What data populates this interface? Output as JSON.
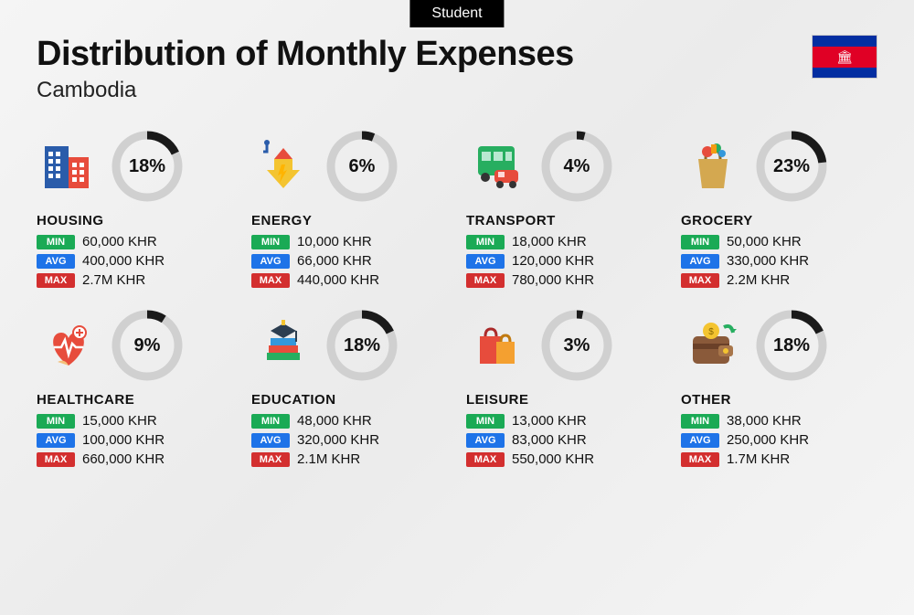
{
  "badge": "Student",
  "title": "Distribution of Monthly Expenses",
  "country": "Cambodia",
  "flag": {
    "stripe_colors": [
      "#032ea1",
      "#e00025",
      "#032ea1"
    ],
    "temple_color": "#ffffff"
  },
  "ring_style": {
    "radius": 34,
    "stroke_width": 9,
    "bg_color": "#d0d0d0",
    "fg_color": "#1a1a1a"
  },
  "tag_labels": {
    "min": "MIN",
    "avg": "AVG",
    "max": "MAX"
  },
  "tag_colors": {
    "min": "#1aaa55",
    "avg": "#1e73e8",
    "max": "#d32f2f"
  },
  "categories": [
    {
      "key": "housing",
      "name": "HOUSING",
      "percent": 18,
      "percent_label": "18%",
      "min": "60,000 KHR",
      "avg": "400,000 KHR",
      "max": "2.7M KHR",
      "icon": "buildings"
    },
    {
      "key": "energy",
      "name": "ENERGY",
      "percent": 6,
      "percent_label": "6%",
      "min": "10,000 KHR",
      "avg": "66,000 KHR",
      "max": "440,000 KHR",
      "icon": "energy"
    },
    {
      "key": "transport",
      "name": "TRANSPORT",
      "percent": 4,
      "percent_label": "4%",
      "min": "18,000 KHR",
      "avg": "120,000 KHR",
      "max": "780,000 KHR",
      "icon": "bus"
    },
    {
      "key": "grocery",
      "name": "GROCERY",
      "percent": 23,
      "percent_label": "23%",
      "min": "50,000 KHR",
      "avg": "330,000 KHR",
      "max": "2.2M KHR",
      "icon": "bag"
    },
    {
      "key": "healthcare",
      "name": "HEALTHCARE",
      "percent": 9,
      "percent_label": "9%",
      "min": "15,000 KHR",
      "avg": "100,000 KHR",
      "max": "660,000 KHR",
      "icon": "heart"
    },
    {
      "key": "education",
      "name": "EDUCATION",
      "percent": 18,
      "percent_label": "18%",
      "min": "48,000 KHR",
      "avg": "320,000 KHR",
      "max": "2.1M KHR",
      "icon": "books"
    },
    {
      "key": "leisure",
      "name": "LEISURE",
      "percent": 3,
      "percent_label": "3%",
      "min": "13,000 KHR",
      "avg": "83,000 KHR",
      "max": "550,000 KHR",
      "icon": "shopping"
    },
    {
      "key": "other",
      "name": "OTHER",
      "percent": 18,
      "percent_label": "18%",
      "min": "38,000 KHR",
      "avg": "250,000 KHR",
      "max": "1.7M KHR",
      "icon": "wallet"
    }
  ]
}
